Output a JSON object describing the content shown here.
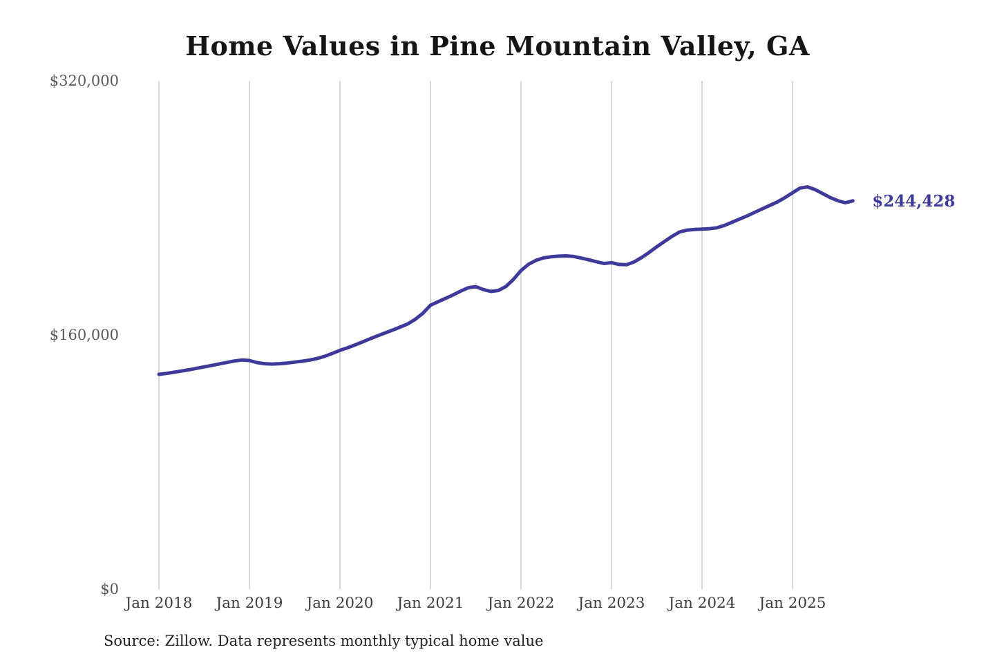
{
  "source_note": "Source: Zillow. Data represents monthly typical home value",
  "chart_data": {
    "type": "line",
    "title": "Home Values in Pine Mountain Valley, GA",
    "xlabel": "",
    "ylabel": "",
    "ylim": [
      0,
      320000
    ],
    "grid": "vertical-only",
    "legend": "none",
    "line_color": "#3d3a99",
    "grid_color": "#cbcbcb",
    "end_label": "$244,428",
    "latest_value": 244428,
    "y_ticks": [
      {
        "value": 0,
        "label": "$0"
      },
      {
        "value": 160000,
        "label": "$160,000"
      },
      {
        "value": 320000,
        "label": "$320,000"
      }
    ],
    "x_tick_labels": [
      "Jan 2018",
      "Jan 2019",
      "Jan 2020",
      "Jan 2021",
      "Jan 2022",
      "Jan 2023",
      "Jan 2024",
      "Jan 2025"
    ],
    "x": [
      "2018-01",
      "2018-02",
      "2018-03",
      "2018-04",
      "2018-05",
      "2018-06",
      "2018-07",
      "2018-08",
      "2018-09",
      "2018-10",
      "2018-11",
      "2018-12",
      "2019-01",
      "2019-02",
      "2019-03",
      "2019-04",
      "2019-05",
      "2019-06",
      "2019-07",
      "2019-08",
      "2019-09",
      "2019-10",
      "2019-11",
      "2019-12",
      "2020-01",
      "2020-02",
      "2020-03",
      "2020-04",
      "2020-05",
      "2020-06",
      "2020-07",
      "2020-08",
      "2020-09",
      "2020-10",
      "2020-11",
      "2020-12",
      "2021-01",
      "2021-02",
      "2021-03",
      "2021-04",
      "2021-05",
      "2021-06",
      "2021-07",
      "2021-08",
      "2021-09",
      "2021-10",
      "2021-11",
      "2021-12",
      "2022-01",
      "2022-02",
      "2022-03",
      "2022-04",
      "2022-05",
      "2022-06",
      "2022-07",
      "2022-08",
      "2022-09",
      "2022-10",
      "2022-11",
      "2022-12",
      "2023-01",
      "2023-02",
      "2023-03",
      "2023-04",
      "2023-05",
      "2023-06",
      "2023-07",
      "2023-08",
      "2023-09",
      "2023-10",
      "2023-11",
      "2023-12",
      "2024-01",
      "2024-02",
      "2024-03",
      "2024-04",
      "2024-05",
      "2024-06",
      "2024-07",
      "2024-08",
      "2024-09",
      "2024-10",
      "2024-11",
      "2024-12",
      "2025-01",
      "2025-02",
      "2025-03",
      "2025-04",
      "2025-05",
      "2025-06",
      "2025-07",
      "2025-08",
      "2025-09"
    ],
    "values": [
      135200,
      135800,
      136500,
      137300,
      138100,
      139000,
      139900,
      140800,
      141800,
      142700,
      143600,
      144200,
      143900,
      142600,
      141900,
      141700,
      141900,
      142300,
      142900,
      143500,
      144200,
      145200,
      146600,
      148400,
      150300,
      151900,
      153700,
      155600,
      157600,
      159500,
      161300,
      163100,
      165000,
      167000,
      169900,
      173700,
      178700,
      180900,
      183000,
      185200,
      187600,
      189700,
      190400,
      188600,
      187400,
      188000,
      190500,
      195000,
      200500,
      204500,
      207000,
      208500,
      209200,
      209600,
      209800,
      209400,
      208400,
      207300,
      206100,
      205000,
      205500,
      204400,
      204200,
      206000,
      208800,
      212000,
      215500,
      218800,
      222000,
      224800,
      226000,
      226400,
      226600,
      226900,
      227500,
      229000,
      231000,
      233000,
      235000,
      237200,
      239400,
      241600,
      243800,
      246500,
      249500,
      252500,
      253200,
      251500,
      249000,
      246500,
      244500,
      243200,
      244428
    ]
  }
}
